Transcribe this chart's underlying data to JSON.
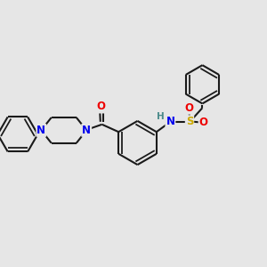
{
  "bg_color": "#e6e6e6",
  "bond_color": "#1a1a1a",
  "bond_width": 1.5,
  "atom_colors": {
    "N": "#0000ee",
    "O": "#ee0000",
    "S": "#ccaa00",
    "H": "#4a8a8a",
    "C": "#1a1a1a"
  },
  "font_size_atom": 8.5,
  "font_size_h": 7.5
}
